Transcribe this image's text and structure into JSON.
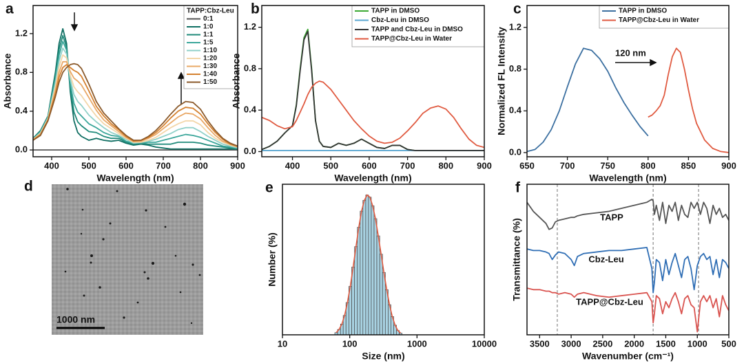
{
  "chart_data": [
    {
      "type": "line",
      "panel_label": "a",
      "xlabel": "Wavelength (nm)",
      "ylabel": "Absorbance",
      "xlim": [
        350,
        900
      ],
      "ylim": [
        -0.07,
        1.49
      ],
      "xticks": [
        400,
        500,
        600,
        700,
        800,
        900
      ],
      "yticks": [
        {
          "value": 0,
          "label": "0.0"
        },
        0.4,
        0.8,
        1.2
      ],
      "legend_title": "TAPP:Cbz-Leu",
      "legend": "upper right",
      "x": [
        350,
        370,
        390,
        410,
        420,
        430,
        440,
        450,
        460,
        470,
        480,
        500,
        520,
        540,
        560,
        580,
        600,
        620,
        640,
        660,
        680,
        700,
        720,
        740,
        760,
        780,
        800,
        820,
        840,
        860,
        880,
        900
      ],
      "series": [
        {
          "name": "0:1",
          "color": "#555555",
          "values": [
            0,
            0,
            0,
            0,
            0,
            0,
            0,
            0,
            0,
            0,
            0,
            0,
            0,
            0,
            0,
            0,
            0,
            0,
            0,
            0,
            0,
            0,
            0,
            0,
            0,
            0,
            0,
            0,
            0,
            0,
            0,
            0
          ]
        },
        {
          "name": "1:0",
          "color": "#0f6e62",
          "values": [
            0.12,
            0.2,
            0.35,
            0.8,
            1.1,
            1.25,
            1.1,
            0.6,
            0.3,
            0.18,
            0.14,
            0.1,
            0.12,
            0.1,
            0.09,
            0.1,
            0.07,
            0.05,
            0.06,
            0.05,
            0.03,
            0.02,
            0.01,
            0.01,
            0.01,
            0.01,
            0.01,
            0.01,
            0.01,
            0.01,
            0.01,
            0.01
          ]
        },
        {
          "name": "1:1",
          "color": "#1f8a7a",
          "values": [
            0.12,
            0.19,
            0.34,
            0.76,
            1.04,
            1.18,
            1.06,
            0.64,
            0.39,
            0.29,
            0.25,
            0.19,
            0.18,
            0.14,
            0.12,
            0.12,
            0.08,
            0.06,
            0.07,
            0.06,
            0.06,
            0.06,
            0.06,
            0.08,
            0.08,
            0.08,
            0.07,
            0.05,
            0.04,
            0.03,
            0.02,
            0.01
          ]
        },
        {
          "name": "1:5",
          "color": "#3aa69a",
          "values": [
            0.11,
            0.19,
            0.34,
            0.73,
            0.98,
            1.12,
            1.03,
            0.68,
            0.48,
            0.39,
            0.35,
            0.27,
            0.23,
            0.18,
            0.15,
            0.14,
            0.09,
            0.07,
            0.07,
            0.08,
            0.08,
            0.1,
            0.12,
            0.14,
            0.16,
            0.15,
            0.13,
            0.1,
            0.07,
            0.04,
            0.03,
            0.02
          ]
        },
        {
          "name": "1:10",
          "color": "#8fd0c8",
          "values": [
            0.11,
            0.18,
            0.33,
            0.69,
            0.92,
            1.05,
            0.99,
            0.73,
            0.57,
            0.5,
            0.46,
            0.36,
            0.29,
            0.23,
            0.18,
            0.15,
            0.11,
            0.07,
            0.08,
            0.09,
            0.11,
            0.14,
            0.17,
            0.21,
            0.23,
            0.23,
            0.19,
            0.14,
            0.1,
            0.06,
            0.04,
            0.02
          ]
        },
        {
          "name": "1:20",
          "color": "#f3d6a8",
          "values": [
            0.11,
            0.17,
            0.32,
            0.65,
            0.86,
            0.98,
            0.95,
            0.77,
            0.65,
            0.6,
            0.56,
            0.45,
            0.35,
            0.27,
            0.22,
            0.17,
            0.12,
            0.08,
            0.08,
            0.1,
            0.13,
            0.18,
            0.23,
            0.27,
            0.3,
            0.3,
            0.26,
            0.18,
            0.12,
            0.08,
            0.05,
            0.03
          ]
        },
        {
          "name": "1:30",
          "color": "#e9a866",
          "values": [
            0.11,
            0.16,
            0.31,
            0.61,
            0.8,
            0.91,
            0.91,
            0.81,
            0.74,
            0.71,
            0.67,
            0.54,
            0.41,
            0.31,
            0.25,
            0.19,
            0.13,
            0.09,
            0.09,
            0.12,
            0.16,
            0.22,
            0.28,
            0.34,
            0.38,
            0.37,
            0.32,
            0.23,
            0.15,
            0.09,
            0.06,
            0.03
          ]
        },
        {
          "name": "1:40",
          "color": "#d4802e",
          "values": [
            0.1,
            0.16,
            0.31,
            0.58,
            0.75,
            0.85,
            0.88,
            0.85,
            0.82,
            0.8,
            0.76,
            0.61,
            0.45,
            0.35,
            0.27,
            0.21,
            0.14,
            0.09,
            0.1,
            0.13,
            0.18,
            0.25,
            0.33,
            0.4,
            0.44,
            0.43,
            0.37,
            0.27,
            0.18,
            0.11,
            0.06,
            0.04
          ]
        },
        {
          "name": "1:50",
          "color": "#8b5a2b",
          "values": [
            0.1,
            0.15,
            0.3,
            0.55,
            0.7,
            0.8,
            0.85,
            0.88,
            0.89,
            0.88,
            0.84,
            0.68,
            0.5,
            0.38,
            0.3,
            0.22,
            0.15,
            0.1,
            0.1,
            0.14,
            0.2,
            0.28,
            0.37,
            0.45,
            0.5,
            0.49,
            0.42,
            0.3,
            0.2,
            0.12,
            0.07,
            0.04
          ]
        }
      ]
    },
    {
      "type": "line",
      "panel_label": "b",
      "xlabel": "Wavelength (nm)",
      "ylabel": "Absorbance",
      "xlim": [
        320,
        900
      ],
      "ylim": [
        -0.05,
        1.41
      ],
      "xticks": [
        400,
        500,
        600,
        700,
        800,
        900
      ],
      "yticks": [
        {
          "value": 0,
          "label": "0.0"
        },
        0.4,
        0.8,
        1.2
      ],
      "legend": "upper right",
      "x": [
        320,
        340,
        360,
        380,
        400,
        410,
        420,
        430,
        440,
        450,
        460,
        470,
        480,
        500,
        520,
        540,
        560,
        580,
        600,
        620,
        640,
        660,
        680,
        700,
        720,
        740,
        760,
        780,
        800,
        820,
        840,
        860,
        880,
        900
      ],
      "series": [
        {
          "name": "TAPP in DMSO",
          "color": "#3aa832",
          "values": [
            0.02,
            0.05,
            0.1,
            0.18,
            0.25,
            0.45,
            0.8,
            1.1,
            1.18,
            0.8,
            0.3,
            0.1,
            0.05,
            0.04,
            0.08,
            0.06,
            0.08,
            0.12,
            0.08,
            0.04,
            0.03,
            0.06,
            0.06,
            0.02,
            0.01,
            0.01,
            0.01,
            0.01,
            0.01,
            0.01,
            0.01,
            0.01,
            0.01,
            0.01
          ]
        },
        {
          "name": "Cbz-Leu in DMSO",
          "color": "#5aa6d0",
          "values": [
            0.01,
            0.01,
            0.01,
            0.01,
            0.01,
            0.01,
            0.01,
            0.01,
            0.01,
            0.01,
            0.01,
            0.01,
            0.01,
            0.01,
            0.01,
            0.01,
            0.01,
            0.01,
            0.01,
            0.01,
            0.01,
            0.01,
            0.01,
            0.01,
            0.01,
            0.01,
            0.01,
            0.01,
            0.01,
            0.01,
            0.01,
            0.01,
            0.01,
            0.01
          ]
        },
        {
          "name": "TAPP and Cbz-Leu in DMSO",
          "color": "#333333",
          "values": [
            0.02,
            0.05,
            0.1,
            0.18,
            0.25,
            0.44,
            0.78,
            1.08,
            1.16,
            0.78,
            0.3,
            0.1,
            0.05,
            0.04,
            0.08,
            0.06,
            0.08,
            0.12,
            0.08,
            0.04,
            0.03,
            0.06,
            0.06,
            0.02,
            0.01,
            0.01,
            0.01,
            0.01,
            0.01,
            0.01,
            0.01,
            0.01,
            0.01,
            0.01
          ]
        },
        {
          "name": "TAPP@Cbz-Leu in Water",
          "color": "#e05a40",
          "values": [
            0.33,
            0.3,
            0.25,
            0.22,
            0.24,
            0.3,
            0.38,
            0.46,
            0.55,
            0.62,
            0.66,
            0.68,
            0.67,
            0.6,
            0.5,
            0.4,
            0.3,
            0.22,
            0.15,
            0.1,
            0.08,
            0.09,
            0.13,
            0.2,
            0.28,
            0.37,
            0.42,
            0.44,
            0.41,
            0.33,
            0.22,
            0.12,
            0.06,
            0.04
          ]
        }
      ]
    },
    {
      "type": "line",
      "panel_label": "c",
      "xlabel": "Wavelength (nm)",
      "ylabel": "Normalized FL Intensity",
      "xlim": [
        650,
        900
      ],
      "ylim": [
        -0.04,
        1.41
      ],
      "xticks": [
        650,
        700,
        750,
        800,
        850,
        900
      ],
      "yticks": [
        {
          "value": 0,
          "label": "0.0"
        },
        0.4,
        0.8,
        1.2
      ],
      "legend": "upper right",
      "annotation": "120 nm",
      "series": [
        {
          "name": "TAPP in DMSO",
          "color": "#3b6fa0",
          "x": [
            650,
            660,
            670,
            680,
            690,
            700,
            710,
            720,
            730,
            740,
            750,
            760,
            770,
            780,
            790,
            800
          ],
          "values": [
            0.01,
            0.03,
            0.1,
            0.22,
            0.4,
            0.63,
            0.85,
            1.0,
            0.98,
            0.9,
            0.78,
            0.62,
            0.48,
            0.36,
            0.25,
            0.16
          ]
        },
        {
          "name": "TAPP@Cbz-Leu in Water",
          "color": "#e05a40",
          "x": [
            800,
            805,
            810,
            815,
            820,
            825,
            830,
            835,
            840,
            845,
            850,
            855,
            860,
            870,
            880,
            890,
            900
          ],
          "values": [
            0.34,
            0.36,
            0.4,
            0.45,
            0.55,
            0.75,
            0.92,
            1.0,
            0.96,
            0.8,
            0.6,
            0.42,
            0.28,
            0.12,
            0.04,
            0.01,
            0
          ]
        }
      ]
    },
    {
      "type": "image",
      "panel_label": "d",
      "scale_bar": "1000 nm"
    },
    {
      "type": "histogram",
      "panel_label": "e",
      "xlabel": "Size (nm)",
      "ylabel": "Number (%)",
      "log_x": true,
      "xlim": [
        10,
        10000
      ],
      "ylim": [
        0,
        14
      ],
      "xticks": [
        10,
        100,
        1000,
        10000
      ],
      "color": "#a9d3e3",
      "fit_color": "#e05a40",
      "bins": [
        60,
        66,
        73,
        80,
        88,
        97,
        107,
        118,
        130,
        143,
        157,
        173,
        190,
        209,
        230,
        253,
        279,
        307,
        338,
        372,
        409,
        450,
        495,
        545,
        600
      ],
      "values": [
        0.2,
        0.5,
        1,
        1.8,
        3,
        4.5,
        6.3,
        8.2,
        10,
        11.5,
        12.5,
        13,
        12.8,
        12,
        10.8,
        9.2,
        7.5,
        5.8,
        4.2,
        2.8,
        1.7,
        0.9,
        0.4,
        0.15
      ]
    },
    {
      "type": "line",
      "panel_label": "f",
      "xlabel": "Wavenumber (cm⁻¹)",
      "ylabel": "Transmittance (%)",
      "series_labels": true,
      "xlim": [
        3700,
        500
      ],
      "ylim": [
        0,
        100
      ],
      "xticks": [
        3500,
        3000,
        2500,
        2000,
        1500,
        1000,
        500
      ],
      "reference_lines": [
        3220,
        1700,
        980
      ],
      "x": [
        3700,
        3600,
        3500,
        3400,
        3350,
        3300,
        3250,
        3200,
        3100,
        3000,
        2950,
        2900,
        2800,
        2600,
        2400,
        2200,
        2000,
        1800,
        1720,
        1700,
        1680,
        1650,
        1600,
        1550,
        1500,
        1450,
        1400,
        1350,
        1300,
        1250,
        1200,
        1150,
        1100,
        1050,
        1000,
        950,
        900,
        850,
        800,
        750,
        700,
        650,
        600,
        550,
        500
      ],
      "series": [
        {
          "name": "TAPP",
          "color": "#555555",
          "values": [
            88,
            82,
            78,
            74,
            70,
            71,
            75,
            76,
            77,
            78,
            78,
            79,
            80,
            81,
            82,
            84,
            86,
            88,
            90,
            89,
            80,
            86,
            76,
            88,
            74,
            86,
            82,
            88,
            76,
            86,
            80,
            78,
            88,
            84,
            88,
            80,
            88,
            84,
            74,
            86,
            80,
            84,
            78,
            80,
            76
          ]
        },
        {
          "name": "Cbz-Leu",
          "color": "#2e6db4",
          "values": [
            57,
            56,
            56,
            55,
            54,
            50,
            53,
            55,
            54,
            50,
            46,
            52,
            54,
            55,
            56,
            56,
            57,
            58,
            44,
            28,
            35,
            50,
            48,
            36,
            50,
            40,
            48,
            54,
            46,
            38,
            50,
            52,
            44,
            30,
            46,
            52,
            54,
            50,
            52,
            40,
            50,
            38,
            50,
            48,
            44
          ]
        },
        {
          "name": "TAPP@Cbz-Leu",
          "color": "#d9534f",
          "values": [
            31,
            30,
            30,
            29,
            29,
            28,
            28,
            27,
            28,
            27,
            25,
            27,
            28,
            26,
            25,
            26,
            27,
            28,
            22,
            8,
            14,
            26,
            24,
            14,
            22,
            18,
            24,
            28,
            22,
            14,
            24,
            26,
            20,
            18,
            2,
            22,
            26,
            22,
            26,
            18,
            24,
            12,
            26,
            20,
            16
          ]
        }
      ]
    }
  ]
}
